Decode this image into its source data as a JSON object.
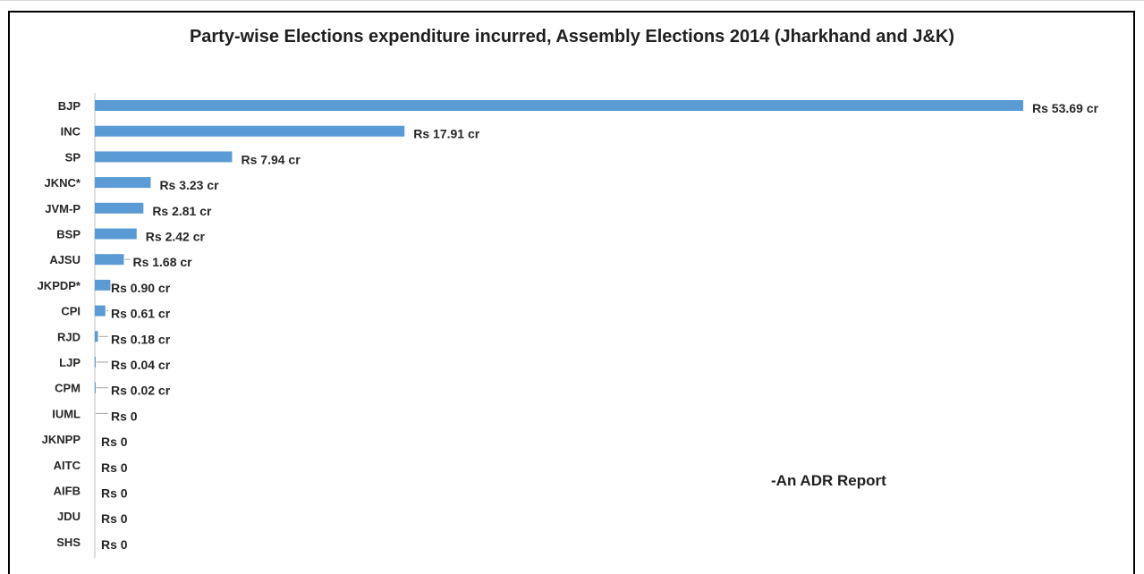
{
  "chart_data": {
    "type": "bar",
    "orientation": "horizontal",
    "title": "Party-wise Elections expenditure incurred, Assembly Elections 2014 (Jharkhand and J&K)",
    "annotation": "-An ADR Report",
    "unit": "Rs cr",
    "bar_color": "#5b9bd5",
    "categories": [
      "BJP",
      "INC",
      "SP",
      "JKNC*",
      "JVM-P",
      "BSP",
      "AJSU",
      "JKPDP*",
      "CPI",
      "RJD",
      "LJP",
      "CPM",
      "IUML",
      "JKNPP",
      "AITC",
      "AIFB",
      "JDU",
      "SHS"
    ],
    "values": [
      53.69,
      17.91,
      7.94,
      3.23,
      2.81,
      2.42,
      1.68,
      0.9,
      0.61,
      0.18,
      0.04,
      0.02,
      0,
      0,
      0,
      0,
      0,
      0
    ],
    "value_labels": [
      "Rs 53.69 cr",
      "Rs 17.91 cr",
      "Rs 7.94 cr",
      "Rs 3.23 cr",
      "Rs 2.81 cr",
      "Rs 2.42 cr",
      "Rs 1.68 cr",
      "Rs 0.90 cr",
      "Rs 0.61 cr",
      "Rs 0.18 cr",
      "Rs 0.04 cr",
      "Rs 0.02 cr",
      "Rs 0",
      "Rs 0",
      "Rs 0",
      "Rs 0",
      "Rs 0",
      "Rs 0"
    ],
    "grid": false,
    "legend": "none"
  }
}
